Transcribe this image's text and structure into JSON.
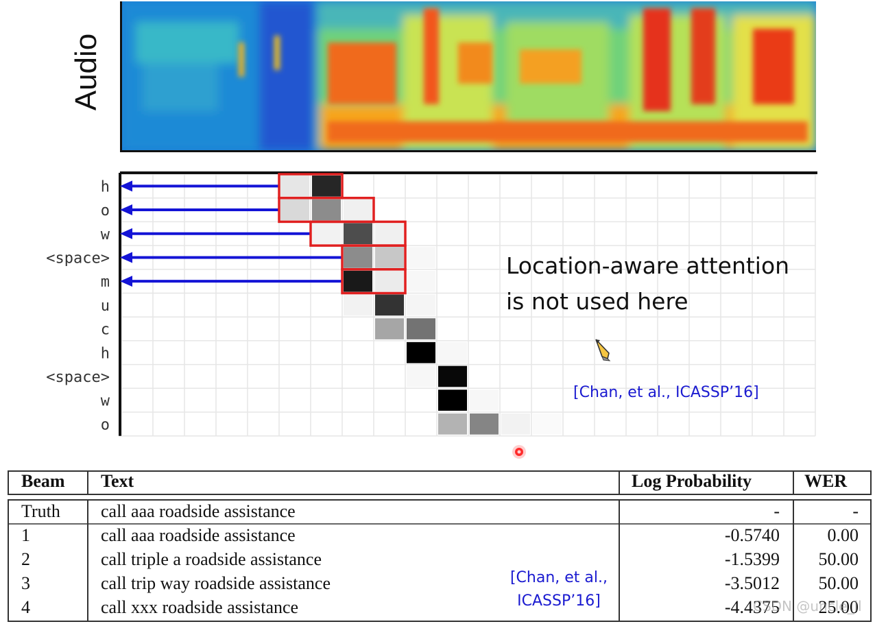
{
  "spectrogram": {
    "label": "Audio"
  },
  "attention": {
    "rows": [
      "h",
      "o",
      "w",
      "<space>",
      "m",
      "u",
      "c",
      "h",
      "<space>",
      "w",
      "o"
    ],
    "cells": [
      [
        [
          5,
          0.1
        ],
        [
          6,
          0.85
        ]
      ],
      [
        [
          5,
          0.15
        ],
        [
          6,
          0.45
        ],
        [
          7,
          0.06
        ]
      ],
      [
        [
          6,
          0.05
        ],
        [
          7,
          0.7
        ],
        [
          8,
          0.06
        ]
      ],
      [
        [
          7,
          0.45
        ],
        [
          8,
          0.22
        ],
        [
          9,
          0.03
        ]
      ],
      [
        [
          7,
          0.9
        ],
        [
          8,
          0.08
        ],
        [
          9,
          0.03
        ]
      ],
      [
        [
          7,
          0.05
        ],
        [
          8,
          0.8
        ],
        [
          9,
          0.04
        ]
      ],
      [
        [
          8,
          0.35
        ],
        [
          9,
          0.55
        ]
      ],
      [
        [
          9,
          1.0
        ],
        [
          10,
          0.03
        ]
      ],
      [
        [
          9,
          0.03
        ],
        [
          10,
          0.97
        ]
      ],
      [
        [
          10,
          1.0
        ],
        [
          11,
          0.03
        ]
      ],
      [
        [
          10,
          0.3
        ],
        [
          11,
          0.48
        ],
        [
          12,
          0.05
        ],
        [
          13,
          0.02
        ]
      ]
    ],
    "highlight_boxes": [
      {
        "row": 0,
        "from": 5,
        "to": 6
      },
      {
        "row": 1,
        "from": 5,
        "to": 7
      },
      {
        "row": 2,
        "from": 6,
        "to": 8
      },
      {
        "row": 3,
        "from": 7,
        "to": 8
      },
      {
        "row": 4,
        "from": 7,
        "to": 8
      }
    ],
    "arrow_rows": [
      0,
      1,
      2,
      3,
      4
    ],
    "highlight_color": "#e02020",
    "arrow_color": "#1414d6"
  },
  "note": {
    "line1": "Location-aware attention",
    "line2": "is not used here"
  },
  "citation_1": "[Chan, et al., ICASSP’16]",
  "table": {
    "headers": [
      "Beam",
      "Text",
      "Log Probability",
      "WER"
    ],
    "truth": {
      "beam": "Truth",
      "text": "call aaa roadside assistance",
      "logprob": "-",
      "wer": "-"
    },
    "rows": [
      {
        "beam": "1",
        "text": "call aaa roadside assistance",
        "logprob": "-0.5740",
        "wer": "0.00"
      },
      {
        "beam": "2",
        "text": "call triple a roadside assistance",
        "logprob": "-1.5399",
        "wer": "50.00"
      },
      {
        "beam": "3",
        "text": "call trip way roadside assistance",
        "logprob": "-3.5012",
        "wer": "50.00"
      },
      {
        "beam": "4",
        "text": "call xxx roadside assistance",
        "logprob": "-4.4375",
        "wer": "25.00"
      }
    ]
  },
  "citation_2": {
    "line1": "[Chan, et al.,",
    "line2": "ICASSP’16]"
  },
  "watermark": "CSDN @uncle_ll"
}
